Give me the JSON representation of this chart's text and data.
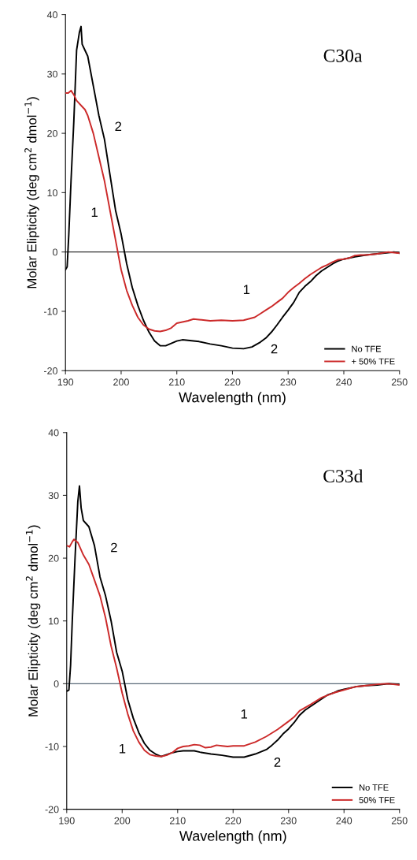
{
  "chart_data": [
    {
      "type": "line",
      "title": "C30a",
      "xlabel": "Wavelength (nm)",
      "ylabel": "Molar Elipticity (deg cm$^{2}$ dmol$^{−1}$)",
      "xlim": [
        190,
        250
      ],
      "ylim": [
        -20,
        40
      ],
      "xticks": [
        190,
        200,
        210,
        220,
        230,
        240,
        250
      ],
      "yticks": [
        -20,
        -10,
        0,
        10,
        20,
        30,
        40
      ],
      "grid": false,
      "legend": "bottom right",
      "marker": "none",
      "line_style": "solid",
      "ref_lines": [
        {
          "axis": "y",
          "value": 0,
          "label": null,
          "color": "#333333"
        }
      ],
      "annotations": [
        "2",
        "1",
        "1",
        "2"
      ],
      "series": [
        {
          "name": "No TFE",
          "color": "#000000",
          "x": [
            190,
            190.3,
            190.6,
            191,
            191.5,
            192,
            192.5,
            192.8,
            193,
            193.5,
            194,
            195,
            196,
            197,
            198,
            199,
            200,
            201,
            202,
            203,
            204,
            205,
            206,
            207,
            208,
            209,
            210,
            211,
            212,
            214,
            216,
            218,
            220,
            222,
            223.5,
            225,
            226,
            227,
            228,
            229,
            230,
            231,
            232,
            233,
            234,
            235,
            236,
            237,
            238,
            239,
            240,
            242,
            244,
            246,
            248,
            249,
            250
          ],
          "values": [
            -3,
            -2.5,
            3,
            12,
            22,
            34,
            37,
            38,
            35,
            34,
            33,
            28,
            23,
            19,
            13,
            7,
            3,
            -2,
            -6,
            -9,
            -11.5,
            -13.5,
            -15,
            -15.8,
            -15.8,
            -15.4,
            -15,
            -14.8,
            -14.9,
            -15.1,
            -15.5,
            -15.8,
            -16.2,
            -16.3,
            -16,
            -15.2,
            -14.5,
            -13.5,
            -12.3,
            -11,
            -9.8,
            -8.5,
            -6.8,
            -5.8,
            -5,
            -4,
            -3.2,
            -2.6,
            -2,
            -1.5,
            -1.2,
            -0.8,
            -0.5,
            -0.3,
            -0.1,
            0,
            -0.2
          ]
        },
        {
          "name": "+ 50% TFE",
          "color": "#cc2a2a",
          "x": [
            190,
            190.5,
            191,
            191.5,
            192,
            193,
            193.5,
            194,
            195,
            196,
            197,
            198,
            199,
            200,
            201,
            202,
            203,
            204,
            205,
            206,
            207,
            208,
            209,
            210,
            211,
            212,
            213,
            214,
            216,
            218,
            220,
            222,
            224,
            225,
            226,
            227,
            228,
            229,
            230,
            231,
            232,
            233,
            234,
            235,
            236,
            237,
            238,
            239,
            240,
            241,
            242,
            243,
            244,
            246,
            248,
            250
          ],
          "values": [
            26.8,
            26.8,
            27.2,
            26.5,
            25.5,
            24.5,
            24,
            23,
            20,
            16,
            12,
            7,
            2,
            -3,
            -6.5,
            -9,
            -11,
            -12.3,
            -13,
            -13.3,
            -13.4,
            -13.2,
            -12.8,
            -12,
            -11.8,
            -11.6,
            -11.3,
            -11.4,
            -11.6,
            -11.5,
            -11.6,
            -11.5,
            -11,
            -10.4,
            -9.8,
            -9.2,
            -8.5,
            -7.8,
            -6.8,
            -6,
            -5.3,
            -4.5,
            -3.8,
            -3.2,
            -2.6,
            -2.2,
            -1.7,
            -1.3,
            -1.2,
            -1,
            -0.6,
            -0.5,
            -0.5,
            -0.3,
            0,
            -0.2
          ]
        }
      ]
    },
    {
      "type": "line",
      "title": "C33d",
      "xlabel": "Wavelength (nm)",
      "ylabel": "Molar Elipticity (deg cm$^{2}$ dmol$^{−1}$)",
      "xlim": [
        190,
        250
      ],
      "ylim": [
        -20,
        40
      ],
      "xticks": [
        190,
        200,
        210,
        220,
        230,
        240,
        250
      ],
      "yticks": [
        -20,
        -10,
        0,
        10,
        20,
        30,
        40
      ],
      "grid": false,
      "legend": "bottom right",
      "marker": "none",
      "line_style": "solid",
      "ref_lines": [
        {
          "axis": "y",
          "value": 0,
          "label": null,
          "color": "#5a6a78"
        }
      ],
      "annotations": [
        "2",
        "1",
        "1",
        "2"
      ],
      "series": [
        {
          "name": "No TFE",
          "color": "#000000",
          "x": [
            190,
            190.4,
            190.7,
            191,
            191.5,
            192,
            192.3,
            192.6,
            193,
            193.5,
            194,
            195,
            196,
            197,
            198,
            199,
            200,
            201,
            202,
            203,
            204,
            205,
            206,
            207,
            208,
            209,
            210,
            211,
            212,
            213,
            214,
            216,
            218,
            220,
            222,
            224,
            226,
            227,
            228,
            229,
            230,
            231,
            232,
            233,
            234,
            235,
            236,
            237,
            238,
            239,
            240,
            242,
            244,
            246,
            248,
            250
          ],
          "values": [
            -1.2,
            -1,
            3,
            10,
            20,
            29,
            31.5,
            28,
            26,
            25.5,
            25,
            22,
            17,
            14,
            10,
            5,
            2,
            -2.5,
            -5.5,
            -7.8,
            -9.5,
            -10.6,
            -11.2,
            -11.6,
            -11.3,
            -11,
            -10.8,
            -10.7,
            -10.7,
            -10.7,
            -10.9,
            -11.2,
            -11.4,
            -11.7,
            -11.7,
            -11.2,
            -10.5,
            -9.8,
            -9,
            -8,
            -7.2,
            -6.2,
            -5,
            -4.2,
            -3.6,
            -3,
            -2.4,
            -1.8,
            -1.5,
            -1.1,
            -0.9,
            -0.5,
            -0.3,
            -0.2,
            0,
            -0.1
          ]
        },
        {
          "name": "50% TFE",
          "color": "#cc2a2a",
          "x": [
            190,
            190.5,
            191,
            191.3,
            192,
            193,
            194,
            195,
            196,
            197,
            198,
            199,
            200,
            201,
            202,
            203,
            204,
            205,
            206,
            207,
            208,
            209,
            210,
            211,
            212,
            213,
            214,
            215,
            216,
            217,
            218,
            219,
            220,
            222,
            224,
            226,
            228,
            230,
            231,
            232,
            234,
            236,
            238,
            240,
            242,
            244,
            246,
            248,
            250
          ],
          "values": [
            22,
            21.8,
            22.6,
            23,
            22.5,
            20.5,
            19,
            16.5,
            14,
            10.5,
            6,
            2.5,
            -1.5,
            -4.8,
            -7.5,
            -9.3,
            -10.6,
            -11.3,
            -11.5,
            -11.6,
            -11.4,
            -11,
            -10.3,
            -10,
            -9.9,
            -9.7,
            -9.8,
            -10.2,
            -10.1,
            -9.8,
            -9.9,
            -10,
            -9.9,
            -9.9,
            -9.3,
            -8.4,
            -7.3,
            -6,
            -5.3,
            -4.3,
            -3.3,
            -2.2,
            -1.5,
            -1,
            -0.5,
            -0.3,
            -0.1,
            0,
            -0.2
          ]
        }
      ]
    }
  ]
}
